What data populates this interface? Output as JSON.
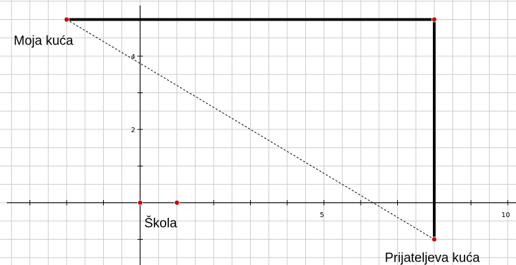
{
  "chart_data": {
    "type": "scatter",
    "title": "",
    "xlabel": "",
    "ylabel": "",
    "xlim": [
      -3.8,
      10.2
    ],
    "ylim": [
      -1.2,
      5.5
    ],
    "grid": true,
    "x_tick_labels": [
      {
        "value": 5,
        "text": "5"
      },
      {
        "value": 10,
        "text": "10"
      }
    ],
    "y_tick_labels": [
      {
        "value": 2,
        "text": "2"
      },
      {
        "value": 4,
        "text": "4"
      }
    ],
    "points": [
      {
        "id": "moja",
        "x": -2,
        "y": 5,
        "label": "Moja kuća"
      },
      {
        "id": "corner",
        "x": 8,
        "y": 5,
        "label": ""
      },
      {
        "id": "prijatelj",
        "x": 8,
        "y": -1,
        "label": "Prijateljeva kuća"
      },
      {
        "id": "skola",
        "x": 0,
        "y": 0,
        "label": "Škola"
      },
      {
        "id": "extra",
        "x": 1,
        "y": 0,
        "label": ""
      }
    ],
    "solid_path": [
      "moja",
      "corner",
      "prijatelj"
    ],
    "dashed_path": [
      "moja",
      "prijatelj"
    ],
    "colors": {
      "point": "#cc0000",
      "grid": "#cccccc",
      "line": "#000000"
    }
  }
}
